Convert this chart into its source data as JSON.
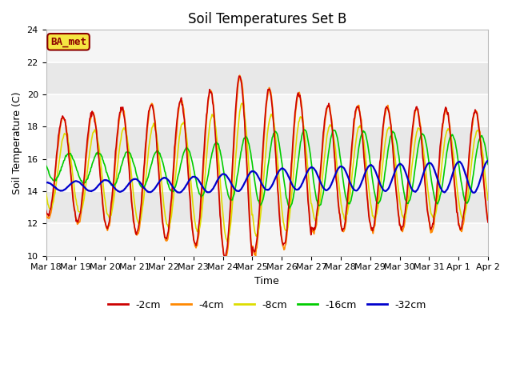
{
  "title": "Soil Temperatures Set B",
  "xlabel": "Time",
  "ylabel": "Soil Temperature (C)",
  "ylim": [
    10,
    24
  ],
  "yticks": [
    10,
    12,
    14,
    16,
    18,
    20,
    22,
    24
  ],
  "annotation": "BA_met",
  "legend_labels": [
    "-2cm",
    "-4cm",
    "-8cm",
    "-16cm",
    "-32cm"
  ],
  "legend_colors": [
    "#cc0000",
    "#ff8800",
    "#dddd00",
    "#00cc00",
    "#0000cc"
  ],
  "bg_color": "#ffffff",
  "plot_bg_color": "#e8e8e8",
  "band_color": "#f5f5f5",
  "x_labels": [
    "Mar 18",
    "Mar 19",
    "Mar 20",
    "Mar 21",
    "Mar 22",
    "Mar 23",
    "Mar 24",
    "Mar 25",
    "Mar 26",
    "Mar 27",
    "Mar 28",
    "Mar 29",
    "Mar 30",
    "Mar 31",
    "Apr 1",
    "Apr 2"
  ],
  "title_fontsize": 12,
  "axis_label_fontsize": 9,
  "tick_fontsize": 8,
  "annotation_color": "#8B0000",
  "annotation_bg": "#f5e642",
  "annotation_border": "#8B0000"
}
